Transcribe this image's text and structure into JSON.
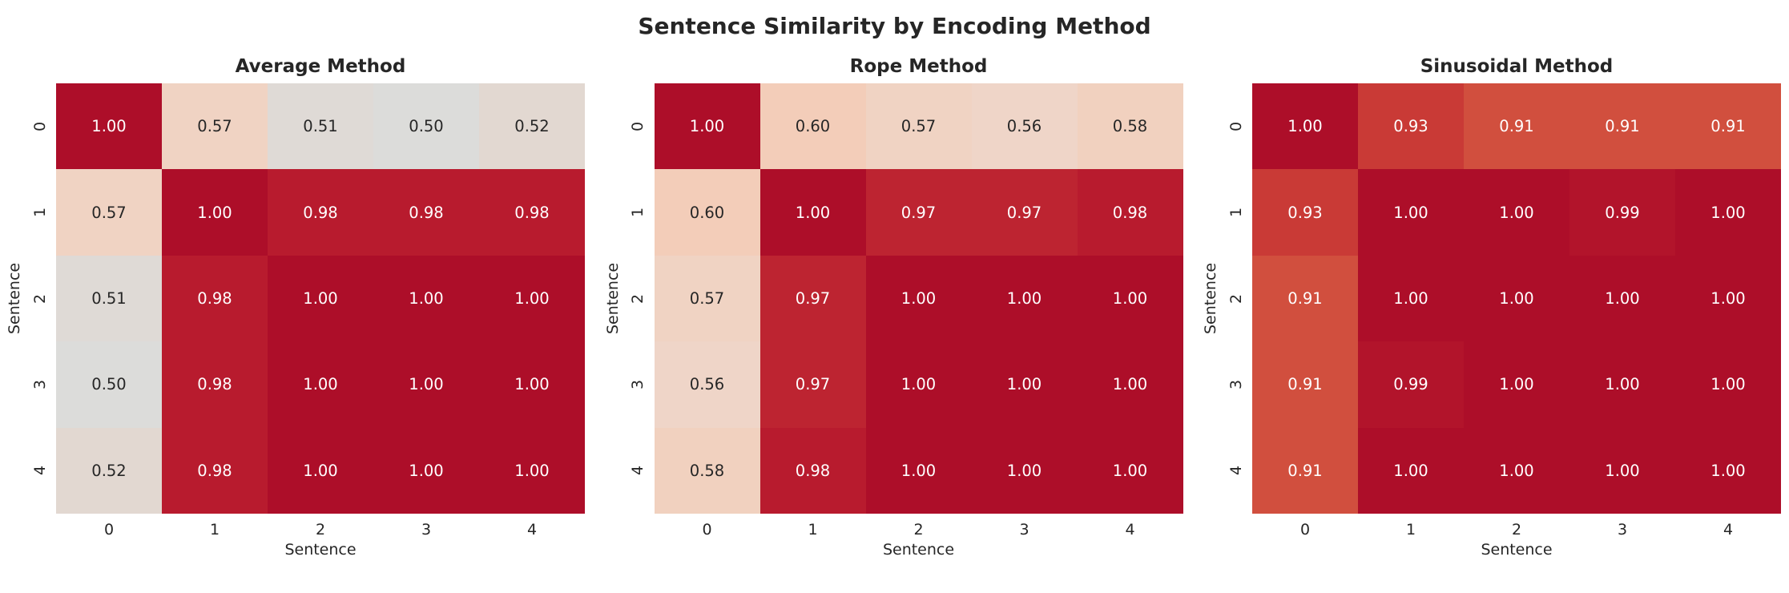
{
  "suptitle": "Sentence Similarity by Encoding Method",
  "colors": {
    "background": "#ffffff",
    "text": "#262626",
    "annot_light": "#ffffff",
    "annot_dark": "#262626",
    "colormap_stops": [
      [
        0.5,
        "#dcdcda"
      ],
      [
        0.52,
        "#e2d8d1"
      ],
      [
        0.56,
        "#efd5c8"
      ],
      [
        0.57,
        "#f0d3c3"
      ],
      [
        0.58,
        "#f1d1bf"
      ],
      [
        0.6,
        "#f3cdb9"
      ],
      [
        0.91,
        "#d14f3e"
      ],
      [
        0.93,
        "#c93a36"
      ],
      [
        0.97,
        "#bd2431"
      ],
      [
        0.98,
        "#b81b2e"
      ],
      [
        0.99,
        "#b2142b"
      ],
      [
        1.0,
        "#ad0e29"
      ]
    ]
  },
  "chart_data": [
    {
      "type": "heatmap",
      "title": "Average Method",
      "xlabel": "Sentence",
      "ylabel": "Sentence",
      "x_ticks": [
        "0",
        "1",
        "2",
        "3",
        "4"
      ],
      "y_ticks": [
        "0",
        "1",
        "2",
        "3",
        "4"
      ],
      "vmin": 0.0,
      "vmax": 1.0,
      "colormap": "coolwarm",
      "values": [
        [
          1.0,
          0.57,
          0.51,
          0.5,
          0.52
        ],
        [
          0.57,
          1.0,
          0.98,
          0.98,
          0.98
        ],
        [
          0.51,
          0.98,
          1.0,
          1.0,
          1.0
        ],
        [
          0.5,
          0.98,
          1.0,
          1.0,
          1.0
        ],
        [
          0.52,
          0.98,
          1.0,
          1.0,
          1.0
        ]
      ]
    },
    {
      "type": "heatmap",
      "title": "Rope Method",
      "xlabel": "Sentence",
      "ylabel": "Sentence",
      "x_ticks": [
        "0",
        "1",
        "2",
        "3",
        "4"
      ],
      "y_ticks": [
        "0",
        "1",
        "2",
        "3",
        "4"
      ],
      "vmin": 0.0,
      "vmax": 1.0,
      "colormap": "coolwarm",
      "values": [
        [
          1.0,
          0.6,
          0.57,
          0.56,
          0.58
        ],
        [
          0.6,
          1.0,
          0.97,
          0.97,
          0.98
        ],
        [
          0.57,
          0.97,
          1.0,
          1.0,
          1.0
        ],
        [
          0.56,
          0.97,
          1.0,
          1.0,
          1.0
        ],
        [
          0.58,
          0.98,
          1.0,
          1.0,
          1.0
        ]
      ]
    },
    {
      "type": "heatmap",
      "title": "Sinusoidal Method",
      "xlabel": "Sentence",
      "ylabel": "Sentence",
      "x_ticks": [
        "0",
        "1",
        "2",
        "3",
        "4"
      ],
      "y_ticks": [
        "0",
        "1",
        "2",
        "3",
        "4"
      ],
      "vmin": 0.0,
      "vmax": 1.0,
      "colormap": "coolwarm",
      "values": [
        [
          1.0,
          0.93,
          0.91,
          0.91,
          0.91
        ],
        [
          0.93,
          1.0,
          1.0,
          0.99,
          1.0
        ],
        [
          0.91,
          1.0,
          1.0,
          1.0,
          1.0
        ],
        [
          0.91,
          0.99,
          1.0,
          1.0,
          1.0
        ],
        [
          0.91,
          1.0,
          1.0,
          1.0,
          1.0
        ]
      ]
    }
  ]
}
